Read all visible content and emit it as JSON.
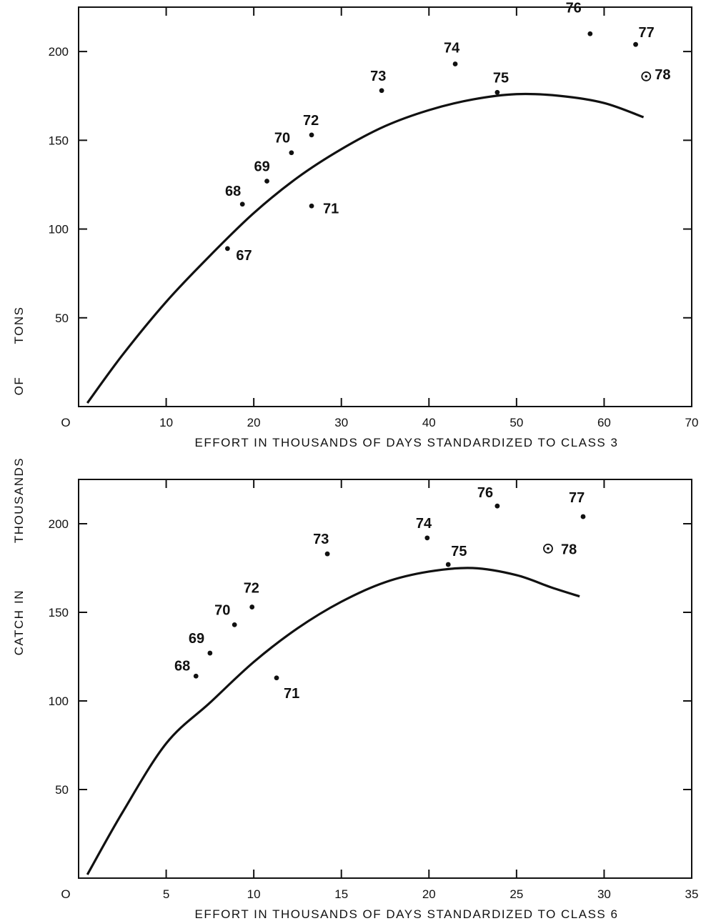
{
  "ylabel_words": [
    "CATCH",
    "IN",
    "THOUSANDS",
    "OF",
    "TONS"
  ],
  "chart_data": [
    {
      "type": "scatter",
      "xlabel": "EFFORT IN THOUSANDS OF DAYS STANDARDIZED TO CLASS 3",
      "xlim": [
        0,
        70
      ],
      "ylim": [
        0,
        225
      ],
      "x_ticks": [
        0,
        10,
        20,
        30,
        40,
        50,
        60,
        70
      ],
      "x_tick_labels": [
        "O",
        "10",
        "20",
        "30",
        "40",
        "50",
        "60",
        "70"
      ],
      "y_ticks": [
        50,
        100,
        150,
        200
      ],
      "grid": false,
      "points": [
        {
          "label": "67",
          "x": 17.0,
          "y": 89,
          "marker": "dot"
        },
        {
          "label": "68",
          "x": 18.7,
          "y": 114,
          "marker": "dot"
        },
        {
          "label": "69",
          "x": 21.5,
          "y": 127,
          "marker": "dot"
        },
        {
          "label": "70",
          "x": 24.3,
          "y": 143,
          "marker": "dot"
        },
        {
          "label": "71",
          "x": 26.6,
          "y": 113,
          "marker": "dot"
        },
        {
          "label": "72",
          "x": 26.6,
          "y": 153,
          "marker": "dot"
        },
        {
          "label": "73",
          "x": 34.6,
          "y": 178,
          "marker": "dot"
        },
        {
          "label": "74",
          "x": 43.0,
          "y": 193,
          "marker": "dot"
        },
        {
          "label": "75",
          "x": 47.8,
          "y": 177,
          "marker": "dot"
        },
        {
          "label": "76",
          "x": 58.4,
          "y": 210,
          "marker": "dot"
        },
        {
          "label": "77",
          "x": 63.6,
          "y": 204,
          "marker": "dot"
        },
        {
          "label": "78",
          "x": 64.8,
          "y": 186,
          "marker": "circle"
        }
      ],
      "curve": {
        "x": [
          1,
          5,
          10,
          15,
          20,
          25,
          30,
          35,
          40,
          45,
          50,
          55,
          60,
          64.5
        ],
        "y": [
          2,
          29,
          59,
          85,
          109,
          129,
          145,
          158,
          167,
          173,
          176,
          175,
          171,
          163
        ]
      }
    },
    {
      "type": "scatter",
      "xlabel": "EFFORT IN THOUSANDS OF DAYS STANDARDIZED TO CLASS 6",
      "xlim": [
        0,
        35
      ],
      "ylim": [
        0,
        225
      ],
      "x_ticks": [
        0,
        5,
        10,
        15,
        20,
        25,
        30,
        35
      ],
      "x_tick_labels": [
        "O",
        "5",
        "10",
        "15",
        "20",
        "25",
        "30",
        "35"
      ],
      "y_ticks": [
        50,
        100,
        150,
        200
      ],
      "grid": false,
      "points": [
        {
          "label": "68",
          "x": 6.7,
          "y": 114,
          "marker": "dot"
        },
        {
          "label": "69",
          "x": 7.5,
          "y": 127,
          "marker": "dot"
        },
        {
          "label": "70",
          "x": 8.9,
          "y": 143,
          "marker": "dot"
        },
        {
          "label": "71",
          "x": 11.3,
          "y": 113,
          "marker": "dot"
        },
        {
          "label": "72",
          "x": 9.9,
          "y": 153,
          "marker": "dot"
        },
        {
          "label": "73",
          "x": 14.2,
          "y": 183,
          "marker": "dot"
        },
        {
          "label": "74",
          "x": 19.9,
          "y": 192,
          "marker": "dot"
        },
        {
          "label": "75",
          "x": 21.1,
          "y": 177,
          "marker": "dot"
        },
        {
          "label": "76",
          "x": 23.9,
          "y": 210,
          "marker": "dot"
        },
        {
          "label": "77",
          "x": 28.8,
          "y": 204,
          "marker": "dot"
        },
        {
          "label": "78",
          "x": 26.8,
          "y": 186,
          "marker": "circle"
        }
      ],
      "curve": {
        "x": [
          0.5,
          2.5,
          5,
          7.5,
          10,
          12.5,
          15,
          17.5,
          20,
          22.5,
          25,
          27,
          28.6
        ],
        "y": [
          2,
          37,
          76,
          99,
          122,
          141,
          156,
          167,
          173,
          175,
          171,
          164,
          159
        ]
      }
    }
  ]
}
